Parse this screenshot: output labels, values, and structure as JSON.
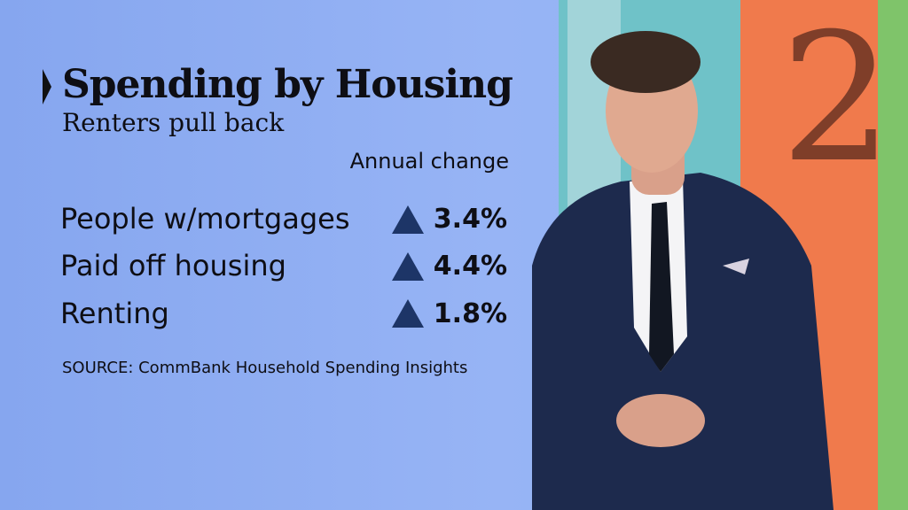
{
  "header": {
    "title": "Spending by Housing",
    "subtitle": "Renters pull back"
  },
  "table": {
    "column_header": "Annual change",
    "rows": [
      {
        "label": "People w/mortgages",
        "value": "3.4%"
      },
      {
        "label": "Paid off housing",
        "value": "4.4%"
      },
      {
        "label": "Renting",
        "value": "1.8%"
      }
    ]
  },
  "footer": {
    "source": "SOURCE: CommBank Household Spending Insights"
  }
}
